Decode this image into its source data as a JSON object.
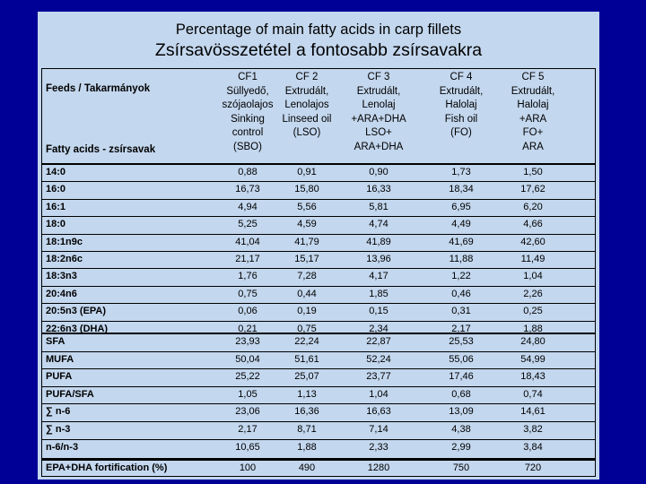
{
  "title": {
    "line1": "Percentage of main fatty acids in carp fillets",
    "line2": "Zsírsavösszetétel a fontosabb zsírsavakra"
  },
  "table": {
    "feeds_label": "Feeds / Takarmányok",
    "fatty_acids_label": "Fatty acids - zsírsavak",
    "columns": [
      {
        "lines": [
          "CF1",
          "Süllyedő,",
          "szójaolajos",
          "Sinking",
          "control",
          "(SBO)"
        ]
      },
      {
        "lines": [
          "CF 2",
          "Extrudált,",
          "Lenolajos",
          "Linseed oil",
          "(LSO)"
        ]
      },
      {
        "lines": [
          "CF 3",
          "Extrudált,",
          "Lenolaj",
          "+ARA+DHA",
          "LSO+",
          "ARA+DHA"
        ]
      },
      {
        "lines": [
          "CF 4",
          "Extrudált,",
          "Halolaj",
          "Fish oil",
          "(FO)"
        ]
      },
      {
        "lines": [
          "CF 5",
          "Extrudált,",
          "Halolaj",
          "+ARA",
          "FO+",
          "ARA"
        ]
      }
    ],
    "rows": [
      {
        "label": "14:0",
        "values": [
          "0,88",
          "0,91",
          "0,90",
          "1,73",
          "1,50"
        ]
      },
      {
        "label": "16:0",
        "values": [
          "16,73",
          "15,80",
          "16,33",
          "18,34",
          "17,62"
        ]
      },
      {
        "label": "16:1",
        "values": [
          "4,94",
          "5,56",
          "5,81",
          "6,95",
          "6,20"
        ]
      },
      {
        "label": "18:0",
        "values": [
          "5,25",
          "4,59",
          "4,74",
          "4,49",
          "4,66"
        ]
      },
      {
        "label": "18:1n9c",
        "values": [
          "41,04",
          "41,79",
          "41,89",
          "41,69",
          "42,60"
        ]
      },
      {
        "label": "18:2n6c",
        "values": [
          "21,17",
          "15,17",
          "13,96",
          "11,88",
          "11,49"
        ]
      },
      {
        "label": "18:3n3",
        "values": [
          "1,76",
          "7,28",
          "4,17",
          "1,22",
          "1,04"
        ]
      },
      {
        "label": "20:4n6",
        "values": [
          "0,75",
          "0,44",
          "1,85",
          "0,46",
          "2,26"
        ]
      },
      {
        "label": "20:5n3 (EPA)",
        "values": [
          "0,06",
          "0,19",
          "0,15",
          "0,31",
          "0,25"
        ]
      },
      {
        "label": "22:6n3 (DHA)",
        "values": [
          "0,21",
          "0,75",
          "2,34",
          "2,17",
          "1,88"
        ]
      },
      {
        "label": "SFA",
        "values": [
          "23,93",
          "22,24",
          "22,87",
          "25,53",
          "24,80"
        ]
      },
      {
        "label": "MUFA",
        "values": [
          "50,04",
          "51,61",
          "52,24",
          "55,06",
          "54,99"
        ]
      },
      {
        "label": "PUFA",
        "values": [
          "25,22",
          "25,07",
          "23,77",
          "17,46",
          "18,43"
        ]
      },
      {
        "label": "PUFA/SFA",
        "values": [
          "1,05",
          "1,13",
          "1,04",
          "0,68",
          "0,74"
        ]
      },
      {
        "label": "∑ n-6",
        "values": [
          "23,06",
          "16,36",
          "16,63",
          "13,09",
          "14,61"
        ]
      },
      {
        "label": "∑ n-3",
        "values": [
          "2,17",
          "8,71",
          "7,14",
          "4,38",
          "3,82"
        ]
      },
      {
        "label": "n-6/n-3",
        "values": [
          "10,65",
          "1,88",
          "2,33",
          "2,99",
          "3,84"
        ]
      },
      {
        "label": "EPA+DHA fortification (%)",
        "values": [
          "100",
          "490",
          "1280",
          "750",
          "720"
        ]
      }
    ]
  }
}
